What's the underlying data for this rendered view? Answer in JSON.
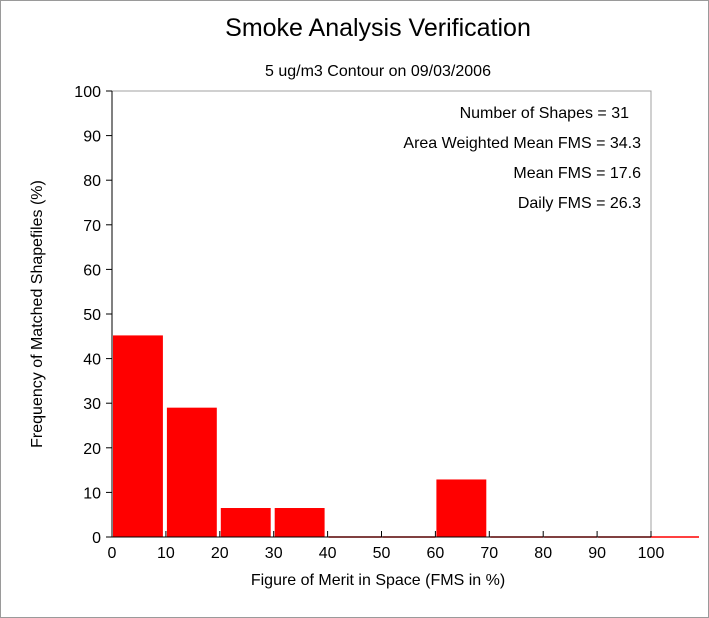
{
  "chart_data": {
    "type": "bar",
    "title": "Smoke Analysis Verification",
    "subtitle": "5 ug/m3 Contour on 09/03/2006",
    "xlabel": "Figure of Merit in Space (FMS in %)",
    "ylabel": "Frequency of Matched Shapefiles (%)",
    "xlim": [
      0,
      100
    ],
    "ylim": [
      0,
      100
    ],
    "x_ticks": [
      0,
      10,
      20,
      30,
      40,
      50,
      60,
      70,
      80,
      90,
      100
    ],
    "y_ticks": [
      0,
      10,
      20,
      30,
      40,
      50,
      60,
      70,
      80,
      90,
      100
    ],
    "bins": [
      {
        "start": 0,
        "end": 10,
        "value": 45.2
      },
      {
        "start": 10,
        "end": 20,
        "value": 29.0
      },
      {
        "start": 20,
        "end": 30,
        "value": 6.5
      },
      {
        "start": 30,
        "end": 40,
        "value": 6.5
      },
      {
        "start": 40,
        "end": 50,
        "value": 0
      },
      {
        "start": 50,
        "end": 60,
        "value": 0
      },
      {
        "start": 60,
        "end": 70,
        "value": 12.9
      },
      {
        "start": 70,
        "end": 80,
        "value": 0
      },
      {
        "start": 80,
        "end": 90,
        "value": 0
      },
      {
        "start": 90,
        "end": 100,
        "value": 0
      }
    ],
    "annotations": [
      "Number of Shapes = 31",
      "Area Weighted Mean FMS = 34.3",
      "Mean FMS = 17.6",
      "Daily FMS = 26.3"
    ],
    "bar_color": "#ff0000",
    "grid": false
  }
}
